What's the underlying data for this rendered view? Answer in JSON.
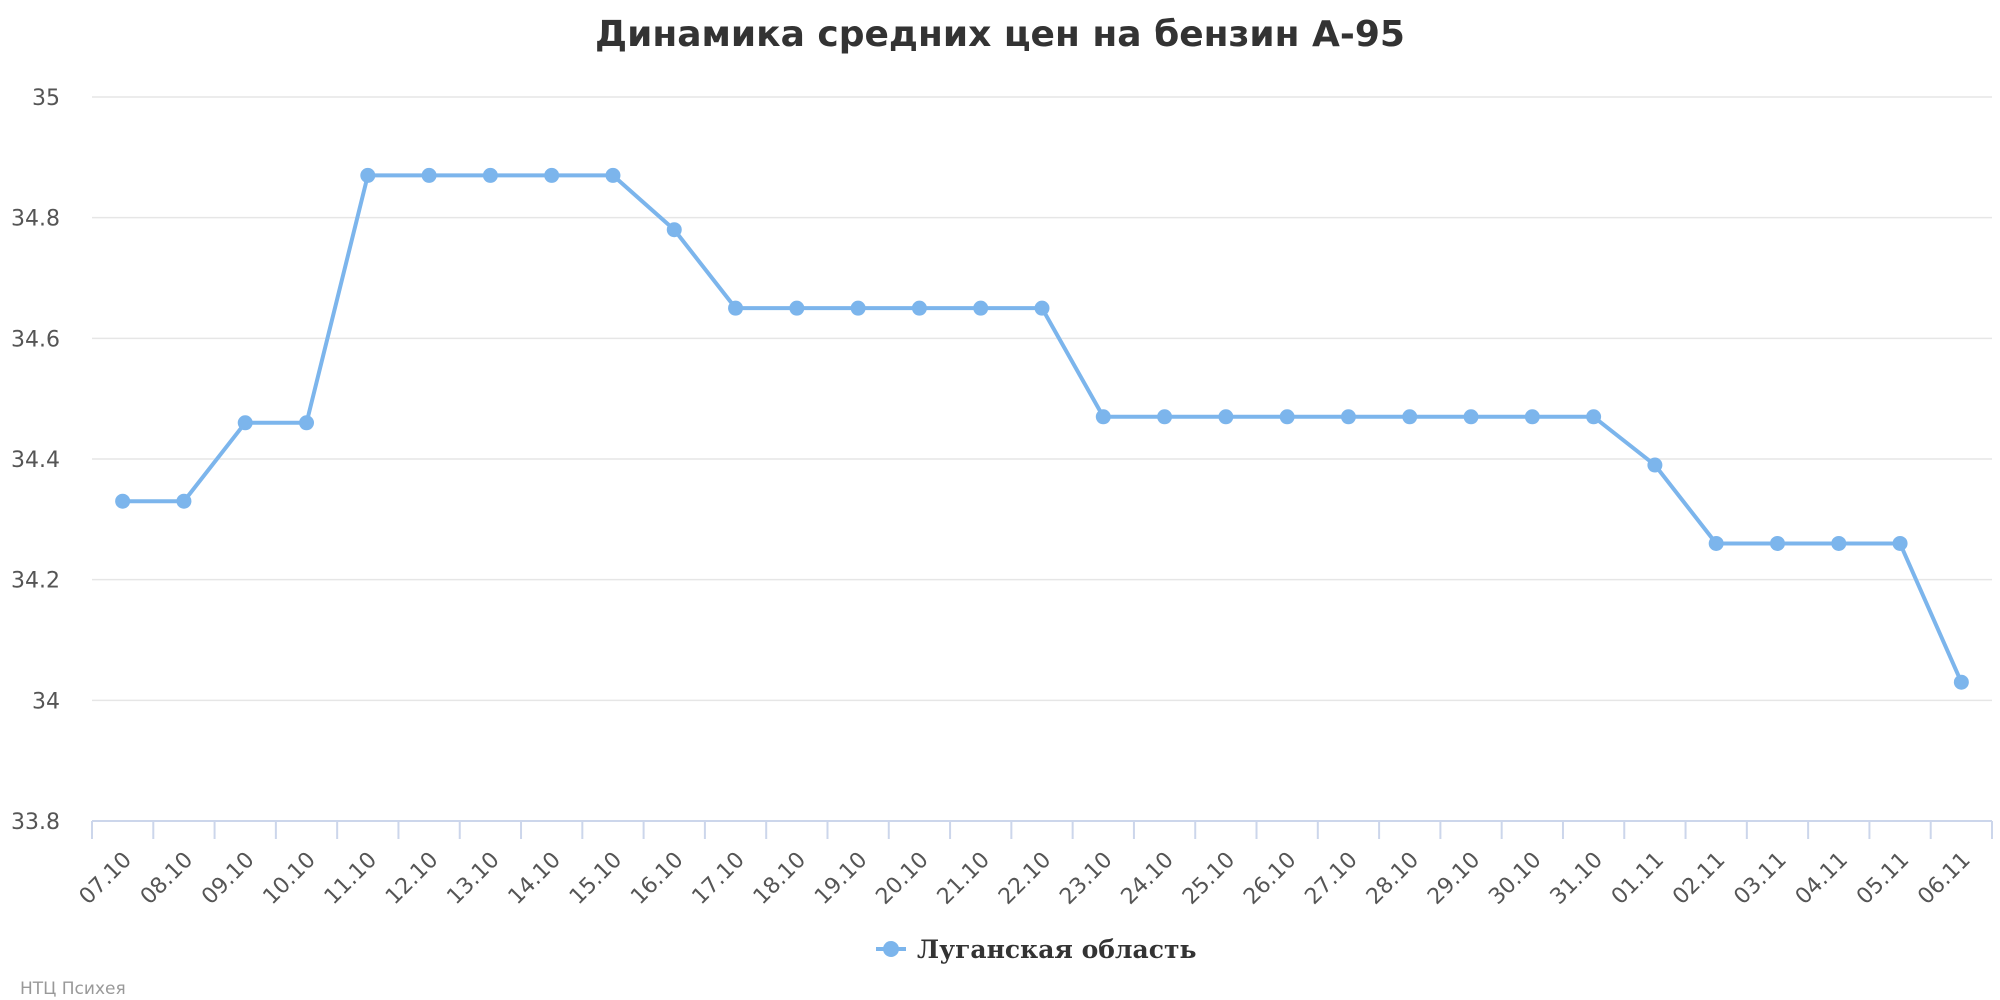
{
  "colors": {
    "series": "#7cb5ec",
    "grid": "#e6e6e6",
    "axis": "#ccd6eb",
    "title": "#333333",
    "tick_text": "#555555",
    "credits": "#999999"
  },
  "credits": "НТЦ Психея",
  "chart_data": {
    "type": "line",
    "title": "Динамика средних цен на бензин А-95",
    "xlabel": "",
    "ylabel": "",
    "ylim": [
      33.8,
      35
    ],
    "yticks": [
      33.8,
      34,
      34.2,
      34.4,
      34.6,
      34.8,
      35
    ],
    "ytick_labels": [
      "33.8",
      "34",
      "34.2",
      "34.4",
      "34.6",
      "34.8",
      "35"
    ],
    "grid": true,
    "legend_position": "bottom-center",
    "categories": [
      "07.10",
      "08.10",
      "09.10",
      "10.10",
      "11.10",
      "12.10",
      "13.10",
      "14.10",
      "15.10",
      "16.10",
      "17.10",
      "18.10",
      "19.10",
      "20.10",
      "21.10",
      "22.10",
      "23.10",
      "24.10",
      "25.10",
      "26.10",
      "27.10",
      "28.10",
      "29.10",
      "30.10",
      "31.10",
      "01.11",
      "02.11",
      "03.11",
      "04.11",
      "05.11",
      "06.11"
    ],
    "series": [
      {
        "name": "Луганская область",
        "color": "#7cb5ec",
        "values": [
          34.33,
          34.33,
          34.46,
          34.46,
          34.87,
          34.87,
          34.87,
          34.87,
          34.87,
          34.78,
          34.65,
          34.65,
          34.65,
          34.65,
          34.65,
          34.65,
          34.47,
          34.47,
          34.47,
          34.47,
          34.47,
          34.47,
          34.47,
          34.47,
          34.47,
          34.39,
          34.26,
          34.26,
          34.26,
          34.26,
          34.03
        ]
      }
    ]
  }
}
